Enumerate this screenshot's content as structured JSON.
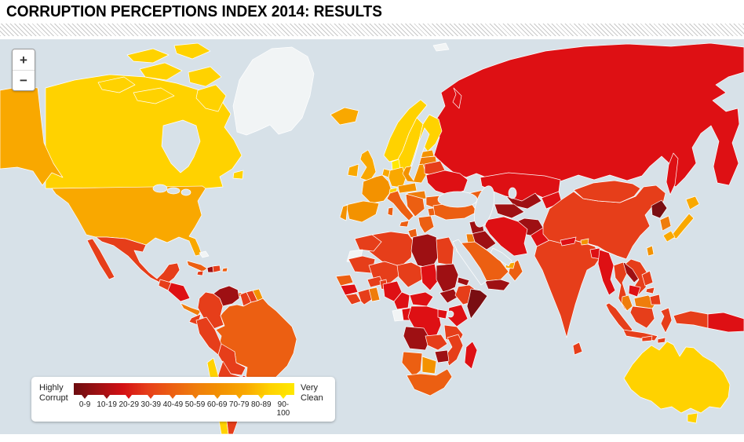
{
  "header": {
    "title": "CORRUPTION PERCEPTIONS INDEX 2014: RESULTS"
  },
  "map_controls": {
    "zoom_in": "+",
    "zoom_out": "−"
  },
  "legend": {
    "left_label_line1": "Highly",
    "left_label_line2": "Corrupt",
    "right_label_line1": "Very",
    "right_label_line2": "Clean",
    "ranges": [
      "0-9",
      "10-19",
      "20-29",
      "30-39",
      "40-49",
      "50-59",
      "60-69",
      "70-79",
      "80-89",
      "90-100"
    ],
    "gradient": [
      "#6C0C0F",
      "#9E1013",
      "#D31014",
      "#E63E1A",
      "#EC5F12",
      "#EF7D0C",
      "#F39200",
      "#F9A800",
      "#FFD200",
      "#FFE800"
    ]
  },
  "map": {
    "ocean_color": "#D7E1E8",
    "border_color": "#FFFFFF",
    "palette": {
      "no-data": "#F1F4F5",
      "0-9": "#7A0E12",
      "10-19": "#9E1013",
      "20-29": "#DE1014",
      "30-39": "#E63E1A",
      "40-49": "#EC5F12",
      "50-59": "#EF7D0C",
      "60-69": "#F39200",
      "70-79": "#F9A800",
      "80-89": "#FFD200",
      "90-100": "#FFE800"
    },
    "regions": {
      "greenland": "no-data",
      "western-sahara": "no-data",
      "svalbard": "no-data",
      "bahamas": "no-data",
      "somalia": "0-9",
      "north-korea": "0-9",
      "sudan": "10-19",
      "south-sudan": "10-19",
      "libya": "10-19",
      "eritrea": "10-19",
      "angola": "10-19",
      "zimbabwe": "10-19",
      "syria": "10-19",
      "iraq": "10-19",
      "yemen": "10-19",
      "afghanistan": "10-19",
      "turkmenistan": "10-19",
      "uzbekistan": "10-19",
      "venezuela": "10-19",
      "haiti": "10-19",
      "laos": "10-19",
      "russia": "20-29",
      "kazakhstan": "20-29",
      "ukraine": "20-29",
      "iran": "20-29",
      "pakistan": "20-29",
      "kyrgyzstan-tajikistan": "20-29",
      "chad": "20-29",
      "nigeria": "20-29",
      "cameroon": "20-29",
      "central-african-republic": "20-29",
      "congo": "20-29",
      "dr-congo": "20-29",
      "uganda": "20-29",
      "kenya": "20-29",
      "guinea": "20-29",
      "madagascar": "20-29",
      "nepal": "20-29",
      "bangladesh": "20-29",
      "myanmar": "20-29",
      "cambodia": "20-29",
      "papua-new-guinea": "20-29",
      "honduras-nicaragua": "20-29",
      "paraguay": "20-29",
      "mexico": "30-39",
      "guatemala": "30-39",
      "jamaica": "30-39",
      "dominican-republic": "30-39",
      "colombia": "30-39",
      "ecuador": "30-39",
      "peru": "30-39",
      "bolivia": "30-39",
      "argentina": "30-39",
      "guyana": "30-39",
      "suriname": "30-39",
      "belarus": "30-39",
      "mongolia": "30-39",
      "china": "30-39",
      "india": "30-39",
      "sri-lanka": "30-39",
      "thailand": "30-39",
      "vietnam": "30-39",
      "indonesia": "30-39",
      "philippines": "30-39",
      "morocco": "30-39",
      "algeria": "30-39",
      "egypt": "30-39",
      "mauritania": "30-39",
      "mali": "30-39",
      "niger": "30-39",
      "ethiopia": "30-39",
      "tanzania": "30-39",
      "mozambique": "30-39",
      "zambia": "30-39",
      "burkina-faso": "30-39",
      "benin-togo": "30-39",
      "ivory-coast": "30-39",
      "sierra-leone-liberia": "30-39",
      "brazil": "40-49",
      "cuba": "40-49",
      "puerto-rico": "40-49",
      "trinidad": "40-49",
      "turkey": "40-49",
      "saudi-arabia": "40-49",
      "oman": "40-49",
      "caucasus": "40-49",
      "tunisia": "40-49",
      "senegal": "40-49",
      "namibia": "40-49",
      "south-africa": "40-49",
      "italy": "40-49",
      "greece": "40-49",
      "romania": "40-49",
      "bulgaria": "40-49",
      "balkans": "40-49",
      "costa-rica-panama": "50-59",
      "ghana": "50-59",
      "israel-jordan": "50-59",
      "malaysia-peninsula": "50-59",
      "malaysia-borneo": "50-59",
      "south-korea": "50-59",
      "hungary-slovakia": "50-59",
      "latvia-lithuania": "50-59",
      "france": "60-69",
      "spain": "60-69",
      "portugal": "60-69",
      "poland": "60-69",
      "estonia": "60-69",
      "austria-czechia": "60-69",
      "botswana": "60-69",
      "bhutan": "60-69",
      "french-guiana": "60-69",
      "taiwan": "60-69",
      "usa": "70-79",
      "japan": "70-79",
      "uk": "70-79",
      "ireland": "70-79",
      "iceland": "70-79",
      "germany": "70-79",
      "benelux": "70-79",
      "uruguay": "70-79",
      "uae": "70-79",
      "canada": "80-89",
      "australia": "80-89",
      "switzerland": "80-89",
      "chile": "80-89",
      "norway": "80-89",
      "sweden": "80-89",
      "finland": "80-89",
      "denmark": "90-100"
    }
  }
}
